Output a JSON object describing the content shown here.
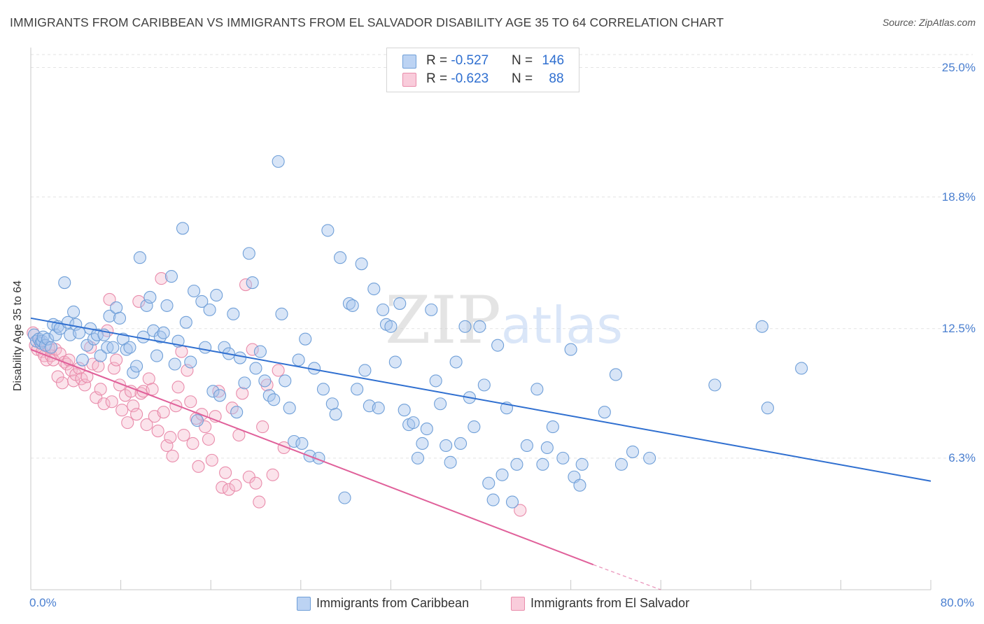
{
  "title": "IMMIGRANTS FROM CARIBBEAN VS IMMIGRANTS FROM EL SALVADOR DISABILITY AGE 35 TO 64 CORRELATION CHART",
  "source": "Source: ZipAtlas.com",
  "legend": {
    "rows": [
      {
        "r_label": "R = ",
        "r_value": "-0.527",
        "n_label": "N = ",
        "n_value": "146"
      },
      {
        "r_label": "R = ",
        "r_value": "-0.623",
        "n_label": "N = ",
        "n_value": "88"
      }
    ]
  },
  "colors": {
    "blue_fill": "#a9c6ee",
    "blue_stroke": "#6f9fd8",
    "blue_line": "#2f6fd0",
    "pink_fill": "#f5b8cc",
    "pink_stroke": "#e98cab",
    "pink_line": "#e0609a",
    "tick_text": "#4a7fd0",
    "grid": "#e3e3e3"
  },
  "chart_data": {
    "type": "scatter",
    "title": "IMMIGRANTS FROM CARIBBEAN VS IMMIGRANTS FROM EL SALVADOR DISABILITY AGE 35 TO 64 CORRELATION CHART",
    "xlabel": "",
    "ylabel": "Disability Age 35 to 64",
    "xlim": [
      0,
      80
    ],
    "ylim": [
      0,
      25
    ],
    "x_tick_labels": [
      "0.0%",
      "80.0%"
    ],
    "y_ticks": [
      6.3,
      12.5,
      18.8,
      25.0
    ],
    "y_tick_labels": [
      "6.3%",
      "12.5%",
      "18.8%",
      "25.0%"
    ],
    "grid": "horizontal dashed",
    "legend_position": "top-center",
    "watermark": "ZIPatlas",
    "series": [
      {
        "name": "Immigrants from Caribbean",
        "color": "#a9c6ee",
        "r": -0.527,
        "n": 146,
        "trend": {
          "x": [
            0,
            80
          ],
          "y": [
            13.0,
            5.2
          ]
        },
        "points": [
          [
            0.3,
            12.2
          ],
          [
            0.5,
            11.9
          ],
          [
            0.7,
            12.0
          ],
          [
            0.9,
            11.8
          ],
          [
            1.0,
            11.9
          ],
          [
            1.1,
            12.1
          ],
          [
            1.3,
            11.7
          ],
          [
            1.5,
            12.0
          ],
          [
            1.8,
            11.6
          ],
          [
            2.0,
            12.7
          ],
          [
            2.2,
            12.2
          ],
          [
            2.4,
            12.6
          ],
          [
            2.6,
            12.5
          ],
          [
            3.0,
            14.7
          ],
          [
            3.3,
            12.8
          ],
          [
            3.5,
            12.2
          ],
          [
            3.8,
            13.3
          ],
          [
            4.0,
            12.7
          ],
          [
            4.3,
            12.3
          ],
          [
            4.6,
            11.0
          ],
          [
            5.0,
            11.7
          ],
          [
            5.3,
            12.5
          ],
          [
            5.6,
            12.0
          ],
          [
            5.9,
            12.2
          ],
          [
            6.2,
            11.2
          ],
          [
            6.5,
            12.2
          ],
          [
            6.8,
            11.6
          ],
          [
            7.0,
            13.1
          ],
          [
            7.3,
            11.6
          ],
          [
            7.6,
            13.5
          ],
          [
            7.9,
            13.0
          ],
          [
            8.2,
            12.0
          ],
          [
            8.5,
            11.5
          ],
          [
            8.8,
            11.6
          ],
          [
            9.1,
            10.4
          ],
          [
            9.4,
            10.7
          ],
          [
            9.7,
            15.9
          ],
          [
            10.0,
            12.1
          ],
          [
            10.3,
            13.6
          ],
          [
            10.6,
            14.0
          ],
          [
            10.9,
            12.4
          ],
          [
            11.2,
            11.2
          ],
          [
            11.5,
            12.1
          ],
          [
            11.8,
            12.3
          ],
          [
            12.1,
            13.6
          ],
          [
            12.5,
            15.0
          ],
          [
            12.8,
            10.8
          ],
          [
            13.1,
            11.9
          ],
          [
            13.5,
            17.3
          ],
          [
            13.8,
            12.8
          ],
          [
            14.2,
            10.9
          ],
          [
            14.5,
            14.3
          ],
          [
            14.8,
            8.1
          ],
          [
            15.2,
            13.8
          ],
          [
            15.5,
            11.6
          ],
          [
            15.9,
            13.4
          ],
          [
            16.2,
            9.5
          ],
          [
            16.5,
            14.1
          ],
          [
            16.8,
            9.3
          ],
          [
            17.2,
            11.6
          ],
          [
            17.6,
            11.3
          ],
          [
            18.0,
            13.2
          ],
          [
            18.3,
            8.5
          ],
          [
            18.6,
            11.1
          ],
          [
            19.0,
            9.9
          ],
          [
            19.4,
            16.1
          ],
          [
            19.7,
            14.7
          ],
          [
            20.0,
            10.6
          ],
          [
            20.4,
            11.4
          ],
          [
            20.8,
            10.0
          ],
          [
            21.2,
            9.3
          ],
          [
            21.6,
            9.1
          ],
          [
            22.0,
            20.5
          ],
          [
            22.3,
            13.2
          ],
          [
            22.6,
            10.0
          ],
          [
            23.0,
            8.7
          ],
          [
            23.4,
            7.1
          ],
          [
            23.8,
            11.0
          ],
          [
            24.1,
            7.0
          ],
          [
            24.4,
            12.0
          ],
          [
            24.8,
            6.4
          ],
          [
            25.2,
            10.6
          ],
          [
            25.6,
            6.3
          ],
          [
            26.0,
            9.6
          ],
          [
            26.4,
            17.2
          ],
          [
            26.8,
            8.9
          ],
          [
            27.1,
            8.4
          ],
          [
            27.5,
            15.9
          ],
          [
            27.9,
            4.4
          ],
          [
            28.3,
            13.7
          ],
          [
            28.6,
            13.6
          ],
          [
            29.0,
            9.6
          ],
          [
            29.4,
            15.6
          ],
          [
            29.7,
            10.5
          ],
          [
            30.1,
            8.8
          ],
          [
            30.5,
            14.4
          ],
          [
            30.9,
            8.7
          ],
          [
            31.3,
            13.4
          ],
          [
            31.6,
            12.7
          ],
          [
            32.0,
            12.6
          ],
          [
            32.4,
            10.9
          ],
          [
            32.8,
            13.7
          ],
          [
            33.2,
            8.6
          ],
          [
            33.6,
            7.9
          ],
          [
            34.0,
            8.0
          ],
          [
            34.4,
            6.3
          ],
          [
            34.8,
            7.0
          ],
          [
            35.2,
            7.7
          ],
          [
            35.6,
            13.4
          ],
          [
            36.0,
            10.0
          ],
          [
            36.4,
            8.9
          ],
          [
            36.9,
            6.9
          ],
          [
            37.3,
            6.1
          ],
          [
            37.8,
            10.9
          ],
          [
            38.2,
            7.0
          ],
          [
            38.6,
            12.6
          ],
          [
            39.0,
            9.2
          ],
          [
            39.4,
            7.8
          ],
          [
            39.9,
            12.6
          ],
          [
            40.3,
            9.8
          ],
          [
            40.7,
            5.1
          ],
          [
            41.1,
            4.3
          ],
          [
            41.5,
            11.7
          ],
          [
            41.9,
            5.5
          ],
          [
            42.3,
            8.7
          ],
          [
            42.8,
            4.2
          ],
          [
            43.2,
            6.0
          ],
          [
            44.1,
            6.9
          ],
          [
            45.0,
            9.6
          ],
          [
            45.5,
            6.0
          ],
          [
            45.9,
            6.8
          ],
          [
            46.4,
            7.8
          ],
          [
            47.3,
            6.3
          ],
          [
            48.0,
            11.5
          ],
          [
            48.3,
            5.4
          ],
          [
            48.8,
            5.0
          ],
          [
            49.0,
            6.0
          ],
          [
            51.0,
            8.5
          ],
          [
            52.0,
            10.3
          ],
          [
            52.5,
            6.0
          ],
          [
            53.5,
            6.6
          ],
          [
            55.0,
            6.3
          ],
          [
            60.8,
            9.8
          ],
          [
            65.0,
            12.6
          ],
          [
            65.5,
            8.7
          ],
          [
            68.5,
            10.6
          ]
        ]
      },
      {
        "name": "Immigrants from El Salvador",
        "color": "#f5b8cc",
        "r": -0.623,
        "n": 88,
        "trend": {
          "x": [
            0,
            50
          ],
          "y": [
            11.5,
            1.2
          ]
        },
        "trend_dashed": {
          "x": [
            50,
            56
          ],
          "y": [
            1.2,
            0.0
          ]
        },
        "points": [
          [
            0.2,
            12.3
          ],
          [
            0.4,
            11.7
          ],
          [
            0.6,
            11.5
          ],
          [
            0.8,
            11.9
          ],
          [
            1.0,
            11.4
          ],
          [
            1.2,
            11.2
          ],
          [
            1.4,
            11.0
          ],
          [
            1.6,
            11.6
          ],
          [
            1.8,
            11.2
          ],
          [
            2.0,
            11.0
          ],
          [
            2.2,
            11.5
          ],
          [
            2.4,
            10.2
          ],
          [
            2.6,
            11.3
          ],
          [
            2.8,
            9.9
          ],
          [
            3.0,
            10.9
          ],
          [
            3.2,
            10.8
          ],
          [
            3.4,
            11.0
          ],
          [
            3.6,
            10.5
          ],
          [
            3.8,
            10.0
          ],
          [
            4.0,
            10.3
          ],
          [
            4.3,
            10.6
          ],
          [
            4.5,
            10.1
          ],
          [
            4.8,
            9.8
          ],
          [
            5.0,
            10.2
          ],
          [
            5.3,
            11.6
          ],
          [
            5.5,
            10.8
          ],
          [
            5.8,
            9.2
          ],
          [
            6.0,
            10.7
          ],
          [
            6.2,
            9.6
          ],
          [
            6.5,
            8.9
          ],
          [
            6.8,
            12.4
          ],
          [
            7.0,
            13.9
          ],
          [
            7.2,
            9.0
          ],
          [
            7.4,
            10.6
          ],
          [
            7.6,
            11.0
          ],
          [
            7.9,
            9.8
          ],
          [
            8.1,
            8.6
          ],
          [
            8.4,
            9.3
          ],
          [
            8.6,
            8.0
          ],
          [
            8.9,
            9.5
          ],
          [
            9.1,
            8.8
          ],
          [
            9.4,
            8.4
          ],
          [
            9.6,
            13.8
          ],
          [
            9.8,
            9.4
          ],
          [
            10.0,
            9.5
          ],
          [
            10.3,
            7.9
          ],
          [
            10.5,
            10.1
          ],
          [
            10.8,
            9.6
          ],
          [
            11.0,
            8.3
          ],
          [
            11.3,
            7.6
          ],
          [
            11.6,
            14.9
          ],
          [
            11.8,
            8.5
          ],
          [
            12.1,
            6.9
          ],
          [
            12.4,
            7.3
          ],
          [
            12.6,
            6.4
          ],
          [
            12.9,
            8.8
          ],
          [
            13.1,
            9.7
          ],
          [
            13.4,
            11.4
          ],
          [
            13.6,
            7.4
          ],
          [
            13.9,
            10.5
          ],
          [
            14.2,
            9.0
          ],
          [
            14.4,
            7.0
          ],
          [
            14.7,
            8.2
          ],
          [
            14.9,
            5.9
          ],
          [
            15.2,
            8.4
          ],
          [
            15.5,
            7.8
          ],
          [
            15.8,
            7.2
          ],
          [
            16.1,
            6.2
          ],
          [
            16.4,
            8.3
          ],
          [
            16.7,
            9.5
          ],
          [
            17.0,
            4.9
          ],
          [
            17.3,
            5.6
          ],
          [
            17.6,
            4.8
          ],
          [
            17.9,
            8.7
          ],
          [
            18.2,
            5.0
          ],
          [
            18.5,
            7.4
          ],
          [
            18.8,
            9.4
          ],
          [
            19.1,
            14.6
          ],
          [
            19.4,
            5.4
          ],
          [
            19.7,
            11.5
          ],
          [
            20.0,
            5.1
          ],
          [
            20.3,
            4.2
          ],
          [
            20.6,
            7.8
          ],
          [
            21.0,
            9.8
          ],
          [
            21.5,
            5.5
          ],
          [
            22.0,
            10.5
          ],
          [
            22.5,
            6.8
          ],
          [
            43.5,
            3.8
          ]
        ]
      }
    ]
  },
  "bottom_legend": [
    "Immigrants from Caribbean",
    "Immigrants from El Salvador"
  ]
}
